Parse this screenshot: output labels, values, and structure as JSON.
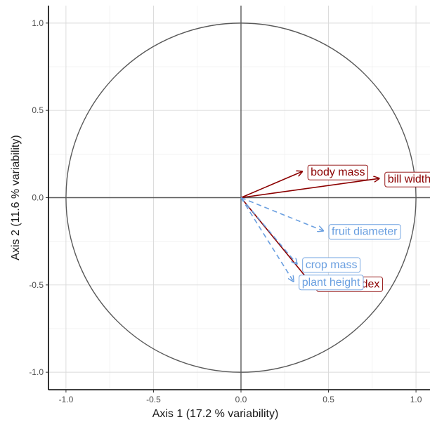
{
  "chart_data": {
    "type": "scatter",
    "title": "",
    "xlabel": "Axis 1 (17.2 % variability)",
    "ylabel": "Axis 2 (11.6 % variability)",
    "xlim": [
      -1.1,
      1.08
    ],
    "ylim": [
      -1.1,
      1.1
    ],
    "x_ticks": [
      -1.0,
      -0.5,
      0.0,
      0.5,
      1.0
    ],
    "y_ticks": [
      -1.0,
      -0.5,
      0.0,
      0.5,
      1.0
    ],
    "x_tick_labels": [
      "-1.0",
      "-0.5",
      "0.0",
      "0.5",
      "1.0"
    ],
    "y_tick_labels": [
      "-1.0",
      "-0.5",
      "0.0",
      "0.5",
      "1.0"
    ],
    "grid": true,
    "unit_circle": true,
    "series": [
      {
        "style": "solid",
        "color": "#8b0000",
        "vectors": [
          {
            "label": "body mass",
            "x": 0.35,
            "y": 0.15
          },
          {
            "label": "bill width",
            "x": 0.79,
            "y": 0.11
          },
          {
            "label": "Kipp's index",
            "x": 0.4,
            "y": -0.49
          }
        ]
      },
      {
        "style": "dashed",
        "color": "#6a9fe0",
        "vectors": [
          {
            "label": "fruit diameter",
            "x": 0.47,
            "y": -0.19
          },
          {
            "label": "crop mass",
            "x": 0.32,
            "y": -0.38
          },
          {
            "label": "plant height",
            "x": 0.3,
            "y": -0.48
          }
        ]
      }
    ]
  }
}
